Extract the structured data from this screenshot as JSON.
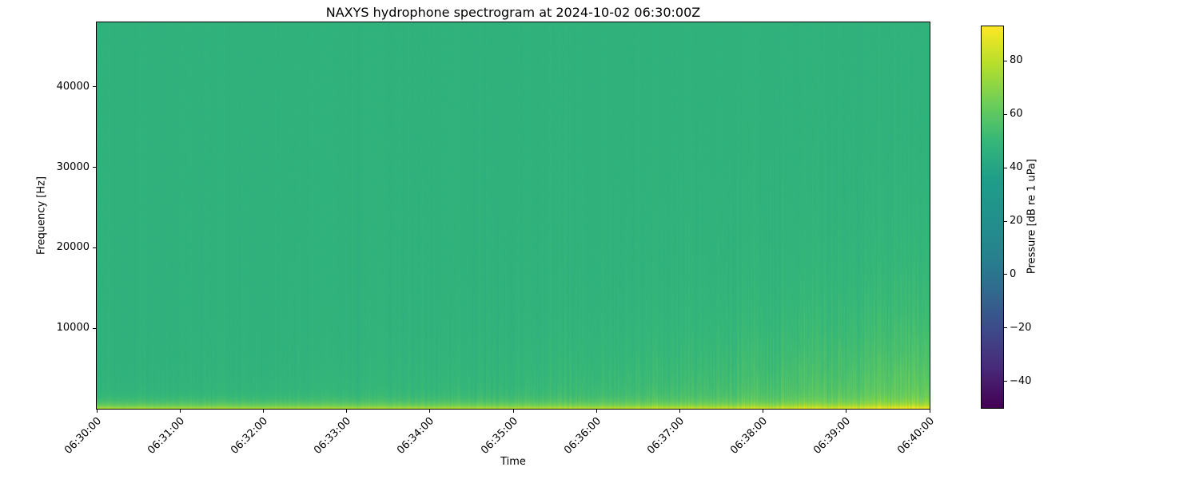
{
  "figure": {
    "background_color": "#ffffff"
  },
  "chart_data": {
    "type": "heatmap",
    "title": "NAXYS hydrophone spectrogram at 2024-10-02 06:30:00Z",
    "xlabel": "Time",
    "ylabel": "Frequency [Hz]",
    "x_ticks": [
      "06:30:00",
      "06:31:00",
      "06:32:00",
      "06:33:00",
      "06:34:00",
      "06:35:00",
      "06:36:00",
      "06:37:00",
      "06:38:00",
      "06:39:00",
      "06:40:00"
    ],
    "y_ticks": [
      10000,
      20000,
      30000,
      40000
    ],
    "y_range_hz": [
      0,
      48000
    ],
    "grid": false,
    "colorbar": {
      "label": "Pressure [dB re 1 uPa]",
      "ticks": [
        80,
        60,
        40,
        20,
        0,
        -20,
        -40
      ],
      "range": [
        -50,
        93
      ],
      "colormap": "viridis",
      "colormap_stops": [
        "#440154",
        "#482878",
        "#3e4989",
        "#31688e",
        "#26828e",
        "#21918c",
        "#1f9e89",
        "#35b779",
        "#6ece58",
        "#b5de2b",
        "#fde725"
      ]
    },
    "intensity_model": {
      "background_db": 47,
      "bottom_band_db": 26,
      "bottom_band_scale": 0.012,
      "lowfreq_base_db": 3,
      "lowfreq_growth_db": 16,
      "lowfreq_scale_base": 0.05,
      "lowfreq_scale_growth": 0.16,
      "striation_db_base": 0.8,
      "striation_db_growth": 4.0,
      "pixel_noise_db": 1.2,
      "description": "Mostly uniform ~45-50 dB green background at all frequencies; bright 60-75 dB band below ~1.5 kHz across the whole record; broadband low-frequency energy and vertical striations below ~20 kHz gradually strengthen from 06:34 toward 06:40"
    }
  }
}
